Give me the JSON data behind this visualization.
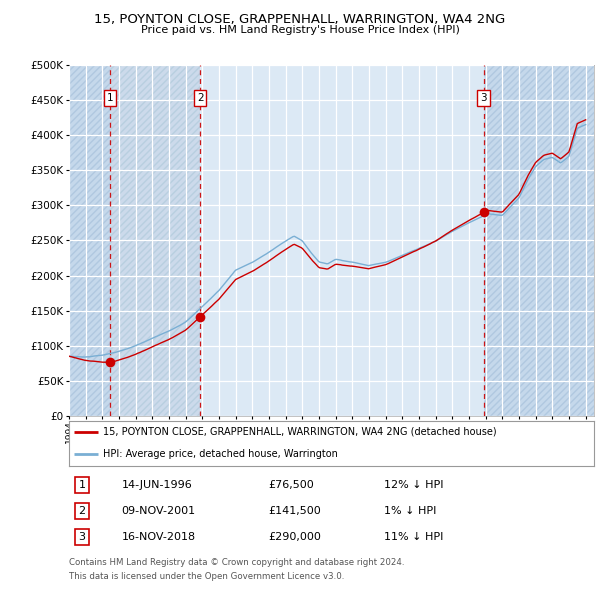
{
  "title_line1": "15, POYNTON CLOSE, GRAPPENHALL, WARRINGTON, WA4 2NG",
  "title_line2": "Price paid vs. HM Land Registry's House Price Index (HPI)",
  "ytick_values": [
    0,
    50000,
    100000,
    150000,
    200000,
    250000,
    300000,
    350000,
    400000,
    450000,
    500000
  ],
  "ylim": [
    0,
    500000
  ],
  "sale_dates_num": [
    1996.458,
    2001.875,
    2018.875
  ],
  "sale_prices": [
    76500,
    141500,
    290000
  ],
  "sale_label_info": [
    {
      "num": "1",
      "date": "14-JUN-1996",
      "price": "£76,500",
      "hpi": "12% ↓ HPI"
    },
    {
      "num": "2",
      "date": "09-NOV-2001",
      "price": "£141,500",
      "hpi": "1% ↓ HPI"
    },
    {
      "num": "3",
      "date": "16-NOV-2018",
      "price": "£290,000",
      "hpi": "11% ↓ HPI"
    }
  ],
  "line_color_house": "#cc0000",
  "line_color_hpi": "#7aafd4",
  "marker_color": "#cc0000",
  "dashed_color": "#cc0000",
  "bg_color_main": "#dce9f5",
  "bg_color_hatch": "#ccdaeb",
  "grid_color": "#ffffff",
  "legend_label_house": "15, POYNTON CLOSE, GRAPPENHALL, WARRINGTON, WA4 2NG (detached house)",
  "legend_label_hpi": "HPI: Average price, detached house, Warrington",
  "footer_line1": "Contains HM Land Registry data © Crown copyright and database right 2024.",
  "footer_line2": "This data is licensed under the Open Government Licence v3.0.",
  "xlim_start": 1994.0,
  "xlim_end": 2025.5
}
